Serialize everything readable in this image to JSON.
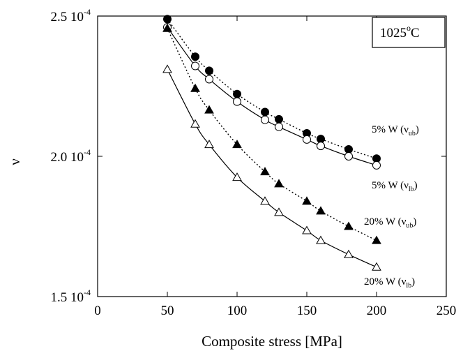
{
  "chart_data": {
    "type": "scatter",
    "title": "",
    "xlabel": "Composite stress [MPa]",
    "ylabel": "ν",
    "xlim": [
      0,
      250
    ],
    "ylim": [
      0.00015,
      0.00025
    ],
    "x_ticks": [
      {
        "value": 0,
        "label": "0"
      },
      {
        "value": 50,
        "label": "50"
      },
      {
        "value": 100,
        "label": "100"
      },
      {
        "value": 150,
        "label": "150"
      },
      {
        "value": 200,
        "label": "200"
      },
      {
        "value": 250,
        "label": "250"
      }
    ],
    "y_ticks": [
      {
        "value": 0.00015,
        "mantissa": "1.5 10",
        "exponent": "-4"
      },
      {
        "value": 0.0002,
        "mantissa": "2.0 10",
        "exponent": "-4"
      },
      {
        "value": 0.00025,
        "mantissa": "2.5 10",
        "exponent": "-4"
      }
    ],
    "annotation": {
      "text": "1025",
      "degree": "o",
      "unit": "C"
    },
    "series": [
      {
        "name": "5% W (ν_ub)",
        "label_main": "5% W (ν",
        "label_sub": "ub",
        "label_end": ")",
        "marker": "filled-circle",
        "line": "dotted",
        "x": [
          50,
          70,
          80,
          100,
          120,
          130,
          150,
          160,
          180,
          200
        ],
        "y": [
          0.0002489,
          0.0002355,
          0.0002305,
          0.0002222,
          0.0002158,
          0.0002132,
          0.0002082,
          0.0002062,
          0.0002025,
          0.0001992
        ]
      },
      {
        "name": "5% W (ν_lb)",
        "label_main": "5% W (ν",
        "label_sub": "lb",
        "label_end": ")",
        "marker": "open-circle",
        "line": "solid",
        "x": [
          50,
          70,
          80,
          100,
          120,
          130,
          150,
          160,
          180,
          200
        ],
        "y": [
          0.000246,
          0.0002322,
          0.0002275,
          0.0002195,
          0.000213,
          0.0002105,
          0.000206,
          0.0002037,
          0.0002,
          0.0001968
        ]
      },
      {
        "name": "20% W (ν_ub)",
        "label_main": "20% W (ν",
        "label_sub": "ub",
        "label_end": ")",
        "marker": "filled-triangle",
        "line": "dotted",
        "x": [
          50,
          70,
          80,
          100,
          120,
          130,
          150,
          160,
          180,
          200
        ],
        "y": [
          0.0002456,
          0.0002242,
          0.0002165,
          0.0002042,
          0.0001945,
          0.0001902,
          0.000184,
          0.0001805,
          0.000175,
          0.00017
        ]
      },
      {
        "name": "20% W (ν_lb)",
        "label_main": "20% W (ν",
        "label_sub": "lb",
        "label_end": ")",
        "marker": "open-triangle",
        "line": "solid",
        "x": [
          50,
          70,
          80,
          100,
          120,
          130,
          150,
          160,
          180,
          200
        ],
        "y": [
          0.000231,
          0.0002115,
          0.0002042,
          0.0001925,
          0.000184,
          0.00018,
          0.0001735,
          0.00017,
          0.000165,
          0.0001605
        ]
      }
    ]
  }
}
